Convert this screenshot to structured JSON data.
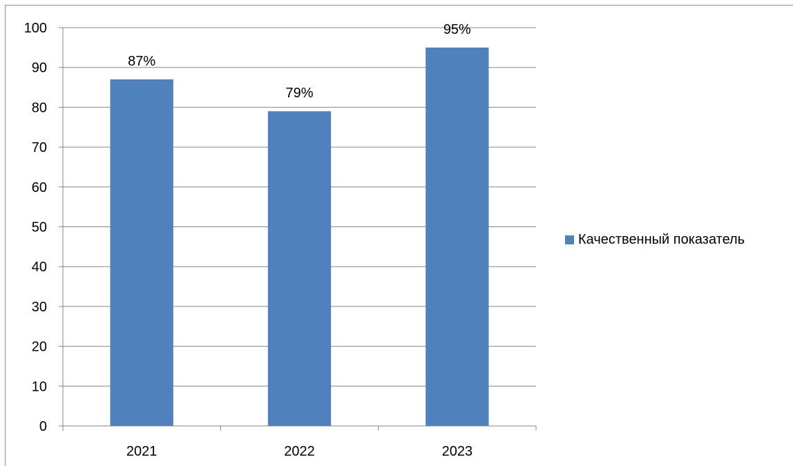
{
  "chart_data": {
    "type": "bar",
    "categories": [
      "2021",
      "2022",
      "2023"
    ],
    "series": [
      {
        "name": "Качественный показатель",
        "values": [
          87,
          79,
          95
        ],
        "color": "#4F81BD"
      }
    ],
    "data_labels": [
      "87%",
      "79%",
      "95%"
    ],
    "ylim": [
      0,
      100
    ],
    "y_ticks": [
      "0",
      "10",
      "20",
      "30",
      "40",
      "50",
      "60",
      "70",
      "80",
      "90",
      "100"
    ],
    "grid": "horizontal",
    "legend_position": "right"
  }
}
